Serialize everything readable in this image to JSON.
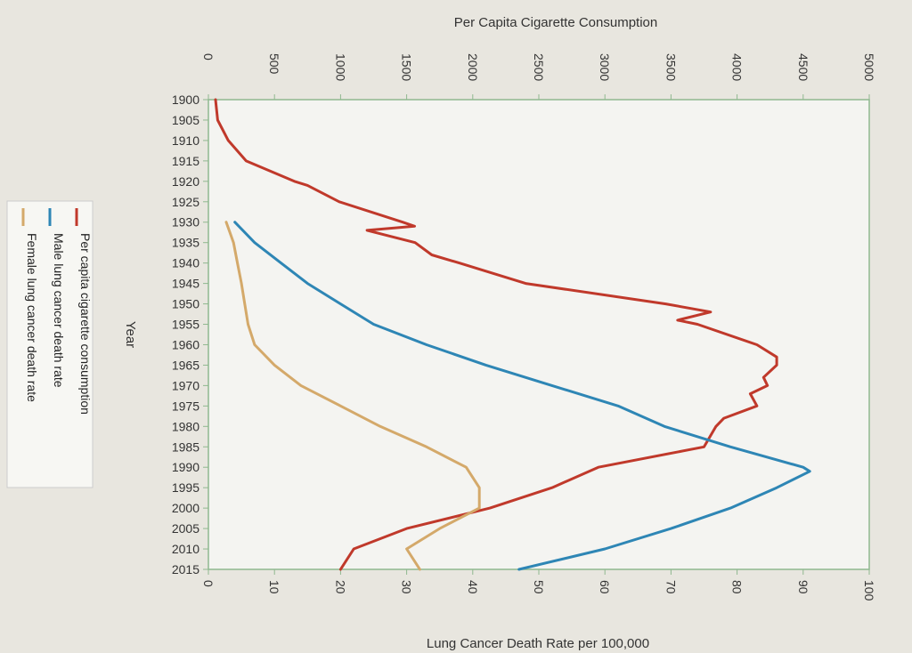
{
  "chart_data": {
    "type": "line",
    "orientation": "rotated",
    "x_label": "Year",
    "x_ticks": [
      "1900",
      "1905",
      "1910",
      "1915",
      "1920",
      "1925",
      "1930",
      "1935",
      "1940",
      "1945",
      "1950",
      "1955",
      "1960",
      "1965",
      "1970",
      "1975",
      "1980",
      "1985",
      "1990",
      "1995",
      "2000",
      "2005",
      "2010",
      "2015"
    ],
    "x_range": [
      1900,
      2015
    ],
    "y_axes": {
      "top": {
        "label": "Per Capita Cigarette Consumption",
        "range": [
          0,
          5000
        ],
        "ticks": [
          "0",
          "500",
          "1000",
          "1500",
          "2000",
          "2500",
          "3000",
          "3500",
          "4000",
          "4500",
          "5000"
        ]
      },
      "bottom": {
        "label": "Lung Cancer Death Rate per 100,000",
        "range": [
          0,
          100
        ],
        "ticks": [
          "0",
          "10",
          "20",
          "30",
          "40",
          "50",
          "60",
          "70",
          "80",
          "90",
          "100"
        ]
      }
    },
    "legend_position": "left",
    "series": [
      {
        "name": "Per capita cigarette consumption",
        "axis": "top",
        "color": "#c0392b",
        "x": [
          1900,
          1905,
          1910,
          1915,
          1920,
          1921,
          1925,
          1930,
          1931,
          1932,
          1935,
          1938,
          1940,
          1945,
          1950,
          1952,
          1954,
          1955,
          1960,
          1963,
          1965,
          1968,
          1970,
          1972,
          1975,
          1978,
          1980,
          1985,
          1990,
          1995,
          2000,
          2005,
          2010,
          2015
        ],
        "y": [
          54,
          70,
          150,
          286,
          650,
          750,
          990,
          1470,
          1560,
          1200,
          1564,
          1690,
          1900,
          2400,
          3460,
          3800,
          3550,
          3700,
          4150,
          4300,
          4300,
          4200,
          4230,
          4100,
          4150,
          3900,
          3840,
          3750,
          2950,
          2600,
          2130,
          1500,
          1100,
          1000
        ]
      },
      {
        "name": "Male lung cancer death rate",
        "axis": "bottom",
        "color": "#2e86b5",
        "x": [
          1930,
          1935,
          1940,
          1945,
          1950,
          1955,
          1960,
          1965,
          1970,
          1975,
          1980,
          1985,
          1990,
          1991,
          1995,
          2000,
          2005,
          2010,
          2015
        ],
        "y": [
          4,
          7,
          11,
          15,
          20,
          25,
          33,
          42,
          52,
          62,
          69,
          79,
          90,
          91,
          86,
          79,
          70,
          60,
          47
        ]
      },
      {
        "name": "Female lung cancer death rate",
        "axis": "bottom",
        "color": "#d4a96a",
        "x": [
          1930,
          1935,
          1940,
          1945,
          1950,
          1955,
          1960,
          1965,
          1970,
          1975,
          1980,
          1985,
          1990,
          1995,
          2000,
          2005,
          2010,
          2015
        ],
        "y": [
          2.7,
          3.8,
          4.4,
          5,
          5.5,
          6,
          7,
          10,
          14,
          20,
          26,
          33,
          39,
          41,
          41,
          35,
          30,
          32
        ]
      }
    ]
  }
}
